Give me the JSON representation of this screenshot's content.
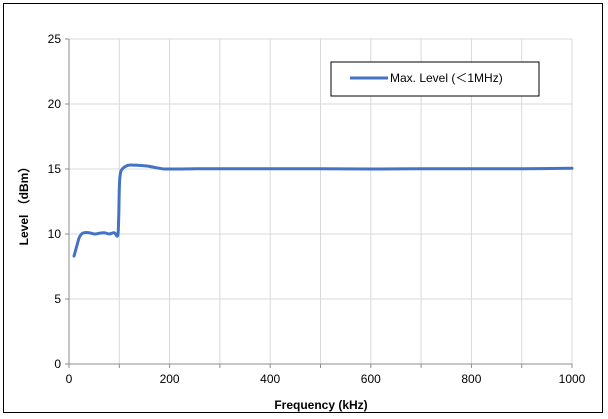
{
  "chart_data": {
    "type": "line",
    "title": "",
    "xlabel": "Frequency (kHz)",
    "ylabel": "Level （dBm）",
    "xlim": [
      0,
      1000
    ],
    "ylim": [
      0,
      25
    ],
    "xticks": [
      200,
      400,
      600,
      800,
      1000
    ],
    "yticks": [
      0,
      5,
      10,
      15,
      20,
      25
    ],
    "grid": true,
    "legend": "top-right",
    "series": [
      {
        "name": "Max. Level (＜1MHz)",
        "color": "#4472c4",
        "x": [
          10,
          15,
          20,
          25,
          30,
          40,
          50,
          60,
          70,
          80,
          90,
          97,
          99,
          100,
          101,
          103,
          106,
          110,
          115,
          120,
          130,
          140,
          150,
          160,
          170,
          180,
          190,
          200,
          220,
          250,
          300,
          400,
          500,
          600,
          700,
          800,
          900,
          1000
        ],
        "y": [
          8.3,
          9.0,
          9.7,
          10.0,
          10.1,
          10.1,
          10.0,
          10.05,
          10.1,
          10.0,
          10.1,
          9.9,
          11.5,
          13.5,
          14.3,
          14.8,
          15.0,
          15.15,
          15.25,
          15.3,
          15.3,
          15.28,
          15.25,
          15.2,
          15.12,
          15.05,
          15.0,
          15.0,
          15.0,
          15.02,
          15.02,
          15.02,
          15.02,
          15.0,
          15.02,
          15.02,
          15.02,
          15.05
        ]
      }
    ]
  }
}
